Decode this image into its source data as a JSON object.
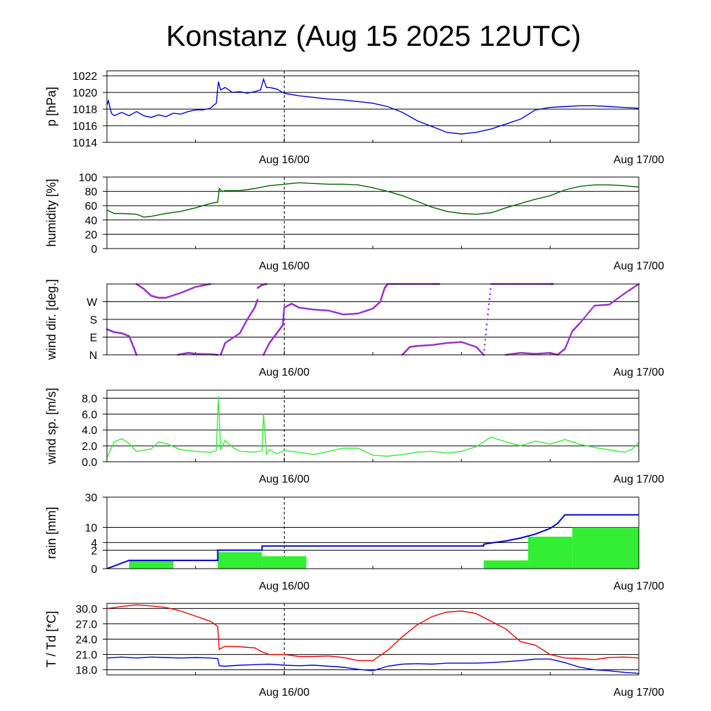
{
  "title": "Konstanz (Aug 15 2025 12UTC)",
  "colors": {
    "pressure": "#0000dd",
    "humidity": "#006400",
    "wind_dir": "#9932cc",
    "wind_speed": "#33ee33",
    "rain_bar": "#33ee33",
    "rain_sum": "#0000cc",
    "temperature": "#ee0000",
    "dewpoint": "#0000cc"
  },
  "chart_data": [
    {
      "id": "pressure",
      "type": "line",
      "ylabel": "p [hPa]",
      "ylim": [
        1014,
        1022.6
      ],
      "yticks": [
        1014,
        1016,
        1018,
        1020,
        1022
      ],
      "ytick_labels": [
        "1014",
        "1016",
        "1018",
        "1020",
        "1022"
      ],
      "xlim": [
        0,
        36
      ],
      "xticks": [
        12,
        36
      ],
      "xtick_labels": [
        "Aug 16/00",
        "Aug 17/00"
      ],
      "dashed_x": 12,
      "series": [
        {
          "color_key": "pressure",
          "x": [
            0,
            0.1,
            0.3,
            0.5,
            1,
            1.5,
            2,
            2.5,
            3,
            3.5,
            4,
            4.5,
            5,
            5.5,
            6,
            6.5,
            7,
            7.4,
            7.55,
            7.7,
            8,
            8.5,
            9,
            9.5,
            10,
            10.4,
            10.6,
            10.8,
            11,
            11.5,
            12,
            13,
            14,
            15,
            16,
            17,
            18,
            19,
            20,
            21,
            22,
            23,
            24,
            25,
            25.5,
            26,
            26.5,
            27,
            28,
            29,
            30,
            31,
            32,
            33,
            34,
            35,
            36
          ],
          "y": [
            1018.5,
            1019.0,
            1017.5,
            1017.2,
            1017.6,
            1017.2,
            1017.7,
            1017.2,
            1017.0,
            1017.3,
            1017.1,
            1017.5,
            1017.4,
            1017.7,
            1017.9,
            1017.9,
            1018.1,
            1018.7,
            1021.3,
            1020.3,
            1020.6,
            1020.0,
            1020.1,
            1019.9,
            1020.1,
            1020.3,
            1021.6,
            1020.6,
            1020.6,
            1020.4,
            1019.9,
            1019.6,
            1019.4,
            1019.2,
            1019.1,
            1018.9,
            1018.7,
            1018.3,
            1017.6,
            1016.6,
            1015.9,
            1015.2,
            1015.0,
            1015.2,
            1015.4,
            1015.6,
            1015.9,
            1016.2,
            1016.8,
            1017.9,
            1018.2,
            1018.3,
            1018.4,
            1018.4,
            1018.3,
            1018.2,
            1018.1
          ]
        }
      ]
    },
    {
      "id": "humidity",
      "type": "line",
      "ylabel": "humidity [%]",
      "ylim": [
        0,
        100
      ],
      "yticks": [
        0,
        20,
        40,
        60,
        80,
        100
      ],
      "ytick_labels": [
        "0",
        "20",
        "40",
        "60",
        "80",
        "100"
      ],
      "xlim": [
        0,
        36
      ],
      "xticks": [
        12,
        36
      ],
      "xtick_labels": [
        "Aug 16/00",
        "Aug 17/00"
      ],
      "dashed_x": 12,
      "series": [
        {
          "color_key": "humidity",
          "x": [
            0,
            0.5,
            1,
            2,
            2.5,
            3,
            4,
            5,
            6,
            7,
            7.5,
            7.6,
            7.8,
            8,
            9,
            10,
            11,
            12,
            13,
            14,
            15,
            16,
            17,
            18,
            19,
            20,
            21,
            22,
            23,
            24,
            25,
            26,
            27,
            28,
            29,
            30,
            31,
            32,
            33,
            34,
            35,
            36
          ],
          "y": [
            54,
            49,
            49,
            48,
            44,
            45,
            49,
            52,
            57,
            63,
            65,
            84,
            80,
            81,
            81,
            84,
            88,
            90,
            92,
            91,
            90,
            90,
            89,
            85,
            80,
            74,
            66,
            58,
            52,
            49,
            48,
            50,
            57,
            63,
            69,
            74,
            82,
            87,
            89,
            89,
            88,
            86
          ]
        }
      ]
    },
    {
      "id": "wind_dir",
      "type": "scatter",
      "ylabel": "wind dir. [deg.]",
      "ylim": [
        0,
        360
      ],
      "yticks": [
        0,
        90,
        180,
        270
      ],
      "ytick_labels": [
        "N",
        "E",
        "S",
        "W"
      ],
      "xlim": [
        0,
        36
      ],
      "xticks": [
        12,
        36
      ],
      "xtick_labels": [
        "Aug 16/00",
        "Aug 17/00"
      ],
      "dashed_x": 12,
      "series": [
        {
          "color_key": "wind_dir",
          "x": [
            0,
            0.5,
            1,
            1.5,
            1.8,
            2.0
          ],
          "y": [
            130,
            115,
            110,
            95,
            40,
            0
          ]
        },
        {
          "color_key": "wind_dir",
          "x": [
            2.0,
            2.5,
            3,
            3.5,
            4,
            5,
            6,
            7
          ],
          "y": [
            360,
            335,
            300,
            290,
            290,
            315,
            345,
            360
          ]
        },
        {
          "color_key": "wind_dir",
          "x": [
            4.8,
            5.5,
            6,
            7,
            7.5
          ],
          "y": [
            0,
            10,
            5,
            3,
            0
          ]
        },
        {
          "color_key": "wind_dir",
          "x": [
            7.7,
            8,
            9,
            9.5,
            10,
            10.2
          ],
          "y": [
            0,
            60,
            110,
            180,
            240,
            280
          ]
        },
        {
          "color_key": "wind_dir",
          "x": [
            10.2,
            10.5,
            10.8
          ],
          "y": [
            340,
            355,
            360
          ]
        },
        {
          "color_key": "wind_dir",
          "x": [
            10.6,
            11,
            11.5,
            11.9,
            12,
            12.5,
            13,
            14,
            15,
            16,
            17,
            18,
            18.5,
            18.8
          ],
          "y": [
            0,
            60,
            110,
            150,
            240,
            260,
            240,
            230,
            225,
            205,
            210,
            235,
            270,
            340
          ]
        },
        {
          "color_key": "wind_dir",
          "x": [
            18.8,
            19,
            20,
            21,
            22,
            22.5
          ],
          "y": [
            340,
            360,
            360,
            360,
            360,
            360
          ]
        },
        {
          "color_key": "wind_dir",
          "x": [
            25.5,
            26,
            27,
            28,
            29,
            30,
            30.2
          ],
          "y": [
            0,
            360,
            360,
            360,
            360,
            360,
            360
          ]
        },
        {
          "color_key": "wind_dir",
          "x": [
            20,
            20.5,
            21,
            22,
            23,
            24,
            25,
            25.5
          ],
          "y": [
            0,
            40,
            45,
            50,
            60,
            65,
            40,
            0
          ]
        },
        {
          "color_key": "wind_dir",
          "x": [
            27,
            28,
            29,
            30,
            30.5,
            31,
            31.5,
            32,
            33,
            34,
            35,
            36
          ],
          "y": [
            0,
            10,
            5,
            10,
            0,
            30,
            120,
            160,
            250,
            255,
            310,
            360
          ]
        }
      ]
    },
    {
      "id": "wind_speed",
      "type": "line",
      "ylabel": "wind sp. [m/s]",
      "ylim": [
        0,
        9
      ],
      "yticks": [
        0,
        2,
        4,
        6,
        8
      ],
      "ytick_labels": [
        "0.0",
        "2.0",
        "4.0",
        "6.0",
        "8.0"
      ],
      "xlim": [
        0,
        36
      ],
      "xticks": [
        12,
        36
      ],
      "xtick_labels": [
        "Aug 16/00",
        "Aug 17/00"
      ],
      "dashed_x": 12,
      "series": [
        {
          "color_key": "wind_speed",
          "x": [
            0,
            0.5,
            1,
            1.5,
            2,
            3,
            3.5,
            4,
            5,
            6,
            7,
            7.4,
            7.55,
            7.7,
            8,
            8.5,
            9,
            10,
            10.5,
            10.6,
            10.8,
            11,
            11.5,
            12,
            13,
            14,
            15,
            16,
            17,
            18,
            19,
            20,
            21,
            22,
            23,
            24,
            25,
            26,
            27,
            28,
            29,
            30,
            31,
            32,
            33,
            34,
            35,
            35.5,
            36
          ],
          "y": [
            0.5,
            2.5,
            2.9,
            2.3,
            1.3,
            1.6,
            2.5,
            2.3,
            1.5,
            1.3,
            1.2,
            1.4,
            8.2,
            1.5,
            2.7,
            1.8,
            1.3,
            1.2,
            1.4,
            6.0,
            1.0,
            1.5,
            1.0,
            1.4,
            1.2,
            0.9,
            1.3,
            1.7,
            1.7,
            0.8,
            0.7,
            0.9,
            1.2,
            1.3,
            1.1,
            1.3,
            1.9,
            3.1,
            2.5,
            2.0,
            2.6,
            2.2,
            2.8,
            2.2,
            1.8,
            1.5,
            1.2,
            1.5,
            2.4
          ]
        }
      ]
    },
    {
      "id": "rain",
      "type": "bar",
      "ylabel": "rain [mm]",
      "ylim": [
        0,
        30
      ],
      "yscale": "sqrt",
      "yticks": [
        0,
        2,
        4,
        10,
        30
      ],
      "ytick_labels": [
        "0",
        "2",
        "4",
        "10",
        "30"
      ],
      "xlim": [
        0,
        36
      ],
      "xticks": [
        12,
        36
      ],
      "xtick_labels": [
        "Aug 16/00",
        "Aug 17/00"
      ],
      "dashed_x": 12,
      "bars": [
        {
          "x0": 1.5,
          "x1": 4.5,
          "value": 0.4
        },
        {
          "x0": 7.5,
          "x1": 10.5,
          "value": 1.6
        },
        {
          "x0": 10.5,
          "x1": 13.5,
          "value": 0.9
        },
        {
          "x0": 25.5,
          "x1": 28.5,
          "value": 0.4
        },
        {
          "x0": 28.5,
          "x1": 31.5,
          "value": 6.0
        },
        {
          "x0": 31.5,
          "x1": 36,
          "value": 10.0
        }
      ],
      "series": [
        {
          "color_key": "rain_sum",
          "x": [
            0,
            1.5,
            7.5,
            7.5,
            10.5,
            10.5,
            25.5,
            25.5,
            26.5,
            27,
            28,
            29,
            30,
            30.5,
            31,
            36
          ],
          "y": [
            0,
            0.4,
            0.4,
            2.0,
            2.0,
            3.0,
            3.0,
            3.5,
            4.2,
            4.5,
            5.5,
            7.0,
            9.5,
            12.0,
            17.0,
            17.0
          ]
        }
      ]
    },
    {
      "id": "temp",
      "type": "line",
      "ylabel": "T / Td [*C]",
      "ylim": [
        17,
        31
      ],
      "yticks": [
        18,
        21,
        24,
        27,
        30
      ],
      "ytick_labels": [
        "18.0",
        "21.0",
        "24.0",
        "27.0",
        "30.0"
      ],
      "xlim": [
        0,
        36
      ],
      "xticks": [
        12,
        36
      ],
      "xtick_labels": [
        "Aug 16/00",
        "Aug 17/00"
      ],
      "dashed_x": 12,
      "series": [
        {
          "color_key": "temperature",
          "x": [
            0,
            1,
            2,
            3,
            4,
            5,
            6,
            7,
            7.5,
            7.6,
            8,
            9,
            10,
            10.5,
            11,
            12,
            13,
            14,
            15,
            16,
            17,
            18,
            19,
            20,
            21,
            22,
            23,
            24,
            25,
            26,
            27,
            28,
            29,
            30,
            31,
            32,
            33,
            34,
            35,
            36
          ],
          "y": [
            30.0,
            30.4,
            30.7,
            30.5,
            30.2,
            29.5,
            28.5,
            27.5,
            26.5,
            22.0,
            22.6,
            22.5,
            22.3,
            21.5,
            21.0,
            21.0,
            20.6,
            20.6,
            20.7,
            20.4,
            19.8,
            19.8,
            21.8,
            24.5,
            26.8,
            28.4,
            29.3,
            29.5,
            29.0,
            27.5,
            26.0,
            23.5,
            22.8,
            21.0,
            20.3,
            20.2,
            20.0,
            20.4,
            20.5,
            20.3
          ]
        },
        {
          "color_key": "dewpoint",
          "x": [
            0,
            1,
            2,
            3,
            4,
            5,
            6,
            7,
            7.5,
            7.6,
            8,
            9,
            10,
            11,
            12,
            13,
            14,
            15,
            16,
            17,
            18,
            19,
            20,
            21,
            22,
            23,
            24,
            25,
            26,
            27,
            28,
            29,
            30,
            31,
            32,
            33,
            34,
            35,
            36
          ],
          "y": [
            20.3,
            20.5,
            20.3,
            20.5,
            20.4,
            20.3,
            20.4,
            20.3,
            20.2,
            18.8,
            18.7,
            18.9,
            19.0,
            19.1,
            18.9,
            18.8,
            18.9,
            18.7,
            18.5,
            18.1,
            17.8,
            18.7,
            19.1,
            19.2,
            19.1,
            19.3,
            19.3,
            19.3,
            19.4,
            19.6,
            19.8,
            20.1,
            20.1,
            19.4,
            18.5,
            18.0,
            17.8,
            17.5,
            17.3
          ]
        }
      ]
    }
  ]
}
